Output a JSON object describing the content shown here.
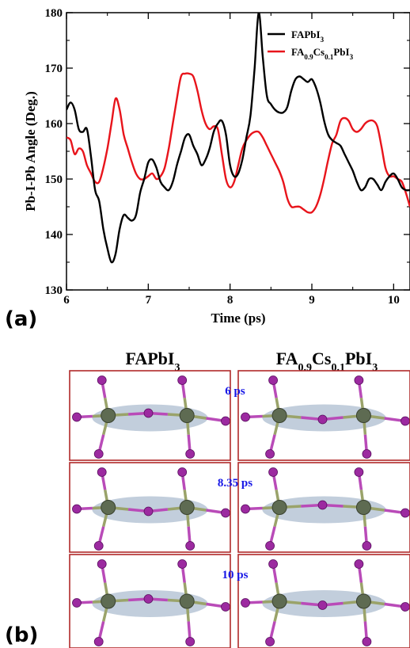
{
  "chart_data": {
    "type": "line",
    "panel_label": "(a)",
    "xlabel": "Time (ps)",
    "ylabel": "Pb-I-Pb Angle (Deg.)",
    "xlim": [
      6,
      10.2
    ],
    "ylim": [
      130,
      180
    ],
    "x_ticks": [
      "6",
      "7",
      "8",
      "9",
      "10"
    ],
    "y_ticks": [
      "130",
      "140",
      "150",
      "160",
      "170",
      "180"
    ],
    "grid": false,
    "legend_position": "top-right",
    "series": [
      {
        "name": "FAPbI3",
        "legend_base": "FAPbI",
        "legend_parts": [
          [
            "FAPbI",
            ""
          ],
          [
            "3",
            "sub"
          ]
        ],
        "color": "#000000",
        "x": [
          6.0,
          6.05,
          6.1,
          6.15,
          6.2,
          6.25,
          6.3,
          6.35,
          6.4,
          6.45,
          6.5,
          6.55,
          6.6,
          6.65,
          6.7,
          6.75,
          6.8,
          6.85,
          6.9,
          6.95,
          7.0,
          7.05,
          7.1,
          7.15,
          7.2,
          7.25,
          7.3,
          7.35,
          7.4,
          7.45,
          7.5,
          7.55,
          7.6,
          7.65,
          7.7,
          7.75,
          7.8,
          7.85,
          7.9,
          7.95,
          8.0,
          8.05,
          8.1,
          8.15,
          8.2,
          8.25,
          8.3,
          8.35,
          8.4,
          8.45,
          8.5,
          8.55,
          8.6,
          8.65,
          8.7,
          8.75,
          8.8,
          8.85,
          8.9,
          8.95,
          9.0,
          9.05,
          9.1,
          9.15,
          9.2,
          9.25,
          9.3,
          9.35,
          9.4,
          9.45,
          9.5,
          9.55,
          9.6,
          9.65,
          9.7,
          9.75,
          9.8,
          9.85,
          9.9,
          9.95,
          10.0,
          10.05,
          10.1,
          10.15,
          10.2
        ],
        "y": [
          162.5,
          163.8,
          162.5,
          159.0,
          158.5,
          159.0,
          154.0,
          148.0,
          146.0,
          141.0,
          137.5,
          135.0,
          136.5,
          141.0,
          143.5,
          143.0,
          142.5,
          143.5,
          147.5,
          150.0,
          153.0,
          153.5,
          152.0,
          149.5,
          148.5,
          148.0,
          149.5,
          152.5,
          155.0,
          157.5,
          158.0,
          156.0,
          154.5,
          152.5,
          153.5,
          155.5,
          158.5,
          160.0,
          160.5,
          158.0,
          152.5,
          150.5,
          151.0,
          153.5,
          157.5,
          161.5,
          170.0,
          180.0,
          172.0,
          165.0,
          163.5,
          162.5,
          162.0,
          162.0,
          163.0,
          166.0,
          168.0,
          168.5,
          168.0,
          167.5,
          168.0,
          166.5,
          164.0,
          160.5,
          158.0,
          157.0,
          156.5,
          156.0,
          154.5,
          153.0,
          151.5,
          149.5,
          148.0,
          148.5,
          150.0,
          150.0,
          149.0,
          148.0,
          149.5,
          150.5,
          151.0,
          150.0,
          148.5,
          148.0,
          148.0
        ]
      },
      {
        "name": "FA0.9Cs0.1PbI3",
        "legend_base": "FA",
        "legend_parts": [
          [
            "FA",
            ""
          ],
          [
            "0.9",
            "sub"
          ],
          [
            "Cs",
            ""
          ],
          [
            "0.1",
            "sub"
          ],
          [
            "PbI",
            ""
          ],
          [
            "3",
            "sub"
          ]
        ],
        "color": "#e8141b",
        "x": [
          6.0,
          6.05,
          6.1,
          6.15,
          6.2,
          6.25,
          6.3,
          6.35,
          6.4,
          6.45,
          6.5,
          6.55,
          6.6,
          6.65,
          6.7,
          6.75,
          6.8,
          6.85,
          6.9,
          6.95,
          7.0,
          7.05,
          7.1,
          7.15,
          7.2,
          7.25,
          7.3,
          7.35,
          7.4,
          7.45,
          7.5,
          7.55,
          7.6,
          7.65,
          7.7,
          7.75,
          7.8,
          7.85,
          7.9,
          7.95,
          8.0,
          8.05,
          8.1,
          8.15,
          8.2,
          8.25,
          8.3,
          8.35,
          8.4,
          8.45,
          8.5,
          8.55,
          8.6,
          8.65,
          8.7,
          8.75,
          8.8,
          8.85,
          8.9,
          8.95,
          9.0,
          9.05,
          9.1,
          9.15,
          9.2,
          9.25,
          9.3,
          9.35,
          9.4,
          9.45,
          9.5,
          9.55,
          9.6,
          9.65,
          9.7,
          9.75,
          9.8,
          9.85,
          9.9,
          9.95,
          10.0,
          10.05,
          10.1,
          10.15,
          10.2
        ],
        "y": [
          157.5,
          157.0,
          154.5,
          155.5,
          155.0,
          152.5,
          151.0,
          149.5,
          149.5,
          152.0,
          155.5,
          160.0,
          164.5,
          162.5,
          158.0,
          155.5,
          153.0,
          151.0,
          150.0,
          150.0,
          150.5,
          151.0,
          150.0,
          150.5,
          152.0,
          155.5,
          160.0,
          164.5,
          168.5,
          169.0,
          169.0,
          168.5,
          166.0,
          162.5,
          160.0,
          159.0,
          159.5,
          159.0,
          154.5,
          150.0,
          148.5,
          149.5,
          152.5,
          155.5,
          157.0,
          158.0,
          158.5,
          158.5,
          157.5,
          156.0,
          154.5,
          153.0,
          151.5,
          149.5,
          146.5,
          145.0,
          145.0,
          145.0,
          144.5,
          144.0,
          144.0,
          145.0,
          147.0,
          150.0,
          153.5,
          156.5,
          158.0,
          160.5,
          161.0,
          160.5,
          159.0,
          158.5,
          159.0,
          160.0,
          160.5,
          160.5,
          159.5,
          156.0,
          152.0,
          150.5,
          150.5,
          150.0,
          149.5,
          147.5,
          145.0
        ]
      }
    ]
  },
  "panel_b": {
    "panel_label": "(b)",
    "columns": [
      {
        "parts": [
          [
            "FAPbI",
            ""
          ],
          [
            "3",
            "sub"
          ]
        ]
      },
      {
        "parts": [
          [
            "FA",
            ""
          ],
          [
            "0.9",
            "sub"
          ],
          [
            "Cs",
            ""
          ],
          [
            "0.1",
            "sub"
          ],
          [
            "PbI",
            ""
          ],
          [
            "3",
            "sub"
          ]
        ]
      }
    ],
    "time_labels": [
      "6 ps",
      "8.35 ps",
      "10 ps"
    ],
    "colors": {
      "frame": "#b02a2a",
      "pb_atom": "#5e6b52",
      "i_atom": "#9c2aa0",
      "bond_i": "#b94bb8",
      "bond_pb": "#9aa36a",
      "ellipse": "#b7c6d6",
      "time_label": "#1515e6"
    }
  }
}
